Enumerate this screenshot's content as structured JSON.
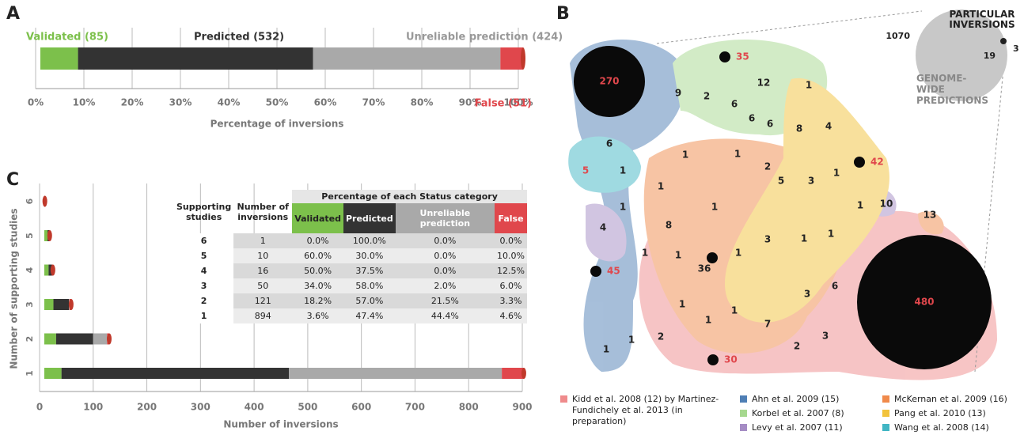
{
  "chart_data": [
    {
      "type": "stacked-bar",
      "panel": "A",
      "orientation": "horizontal",
      "xlabel": "Percentage of inversions",
      "categories": [
        null
      ],
      "series": [
        {
          "name": "Validated (85)",
          "color": "#7cc04b",
          "values": [
            7.8
          ]
        },
        {
          "name": "Predicted (532)",
          "color": "#333333",
          "values": [
            48.7
          ]
        },
        {
          "name": "Unreliable prediction (424)",
          "color": "#a9a9a9",
          "values": [
            38.8
          ]
        },
        {
          "name": "False (51)",
          "color": "#e0474c",
          "values": [
            4.7
          ]
        }
      ],
      "xlim": [
        0,
        100
      ],
      "xticks": [
        {
          "value": 0,
          "label": "0%"
        },
        {
          "value": 10,
          "label": "10%"
        },
        {
          "value": 20,
          "label": "20%"
        },
        {
          "value": 30,
          "label": "30%"
        },
        {
          "value": 40,
          "label": "40%"
        },
        {
          "value": 50,
          "label": "50%"
        },
        {
          "value": 60,
          "label": "60%"
        },
        {
          "value": 70,
          "label": "70%"
        },
        {
          "value": 80,
          "label": "80%"
        },
        {
          "value": 90,
          "label": "90%"
        },
        {
          "value": 100,
          "label": "100%"
        }
      ],
      "grid": true
    },
    {
      "type": "stacked-bar",
      "panel": "C",
      "orientation": "horizontal",
      "xlabel": "Number of inversions",
      "ylabel": "Number of supporting studies",
      "categories": [
        "1",
        "2",
        "3",
        "4",
        "5",
        "6"
      ],
      "series": [
        {
          "color": "#7cc04b",
          "values": [
            32,
            22,
            17,
            8,
            6,
            0
          ]
        },
        {
          "color": "#333333",
          "values": [
            424,
            69,
            29,
            6,
            3,
            1
          ]
        },
        {
          "color": "#a9a9a9",
          "values": [
            397,
            26,
            1,
            0,
            0,
            0
          ]
        },
        {
          "color": "#e0474c",
          "values": [
            41,
            4,
            3,
            2,
            1,
            0
          ]
        }
      ],
      "xlim": [
        0,
        900
      ],
      "xticks": [
        0,
        100,
        200,
        300,
        400,
        500,
        600,
        700,
        800,
        900
      ],
      "grid": true
    }
  ],
  "table": {
    "header": {
      "studies": "Supporting studies",
      "number": "Number of inversions",
      "group": "Percentage of each Status category",
      "columns": [
        {
          "text": "Validated",
          "color": "#7cc04b"
        },
        {
          "text": "Predicted",
          "color": "#333333"
        },
        {
          "text": "Unreliable prediction",
          "color": "#a9a9a9"
        },
        {
          "text": "False",
          "color": "#e0474c"
        }
      ]
    },
    "rows": [
      [
        "6",
        "1",
        "0.0%",
        "100.0%",
        "0.0%",
        "0.0%"
      ],
      [
        "5",
        "10",
        "60.0%",
        "30.0%",
        "0.0%",
        "10.0%"
      ],
      [
        "4",
        "16",
        "50.0%",
        "37.5%",
        "0.0%",
        "12.5%"
      ],
      [
        "3",
        "50",
        "34.0%",
        "58.0%",
        "2.0%",
        "6.0%"
      ],
      [
        "2",
        "121",
        "18.2%",
        "57.0%",
        "21.5%",
        "3.3%"
      ],
      [
        "1",
        "894",
        "3.6%",
        "47.4%",
        "44.4%",
        "4.6%"
      ]
    ]
  },
  "venn": {
    "panel": "B",
    "labels": [
      "270",
      "35",
      "9",
      "2",
      "6",
      "12",
      "1",
      "6",
      "6",
      "8",
      "4",
      "6",
      "1",
      "1",
      "2",
      "42",
      "5",
      "1",
      "1",
      "5",
      "3",
      "1",
      "1",
      "1",
      "1",
      "10",
      "13",
      "4",
      "8",
      "3",
      "1",
      "1",
      "1",
      "1",
      "45",
      "36",
      "1",
      "3",
      "6",
      "480",
      "1",
      "1",
      "1",
      "7",
      "3",
      "2",
      "1",
      "1",
      "2",
      "30"
    ],
    "inset": {
      "title": "PARTICULAR INVERSIONS",
      "subtitle": "GENOME-WIDE PREDICTIONS",
      "counts": [
        "1070",
        "19",
        "3"
      ]
    },
    "legend": [
      {
        "text": "Kidd et al. 2008 (12) by Martinez-Fundichely et al. 2013 (in preparation)",
        "color": "#ef8b8c"
      },
      {
        "text": "Ahn et al. 2009 (15)",
        "color": "#4f7fb5"
      },
      {
        "text": "Korbel et al. 2007 (8)",
        "color": "#a6d88f"
      },
      {
        "text": "Levy et al. 2007 (11)",
        "color": "#a58cc4"
      },
      {
        "text": "McKernan et al. 2009 (16)",
        "color": "#f08a4b"
      },
      {
        "text": "Pang et al. 2010 (13)",
        "color": "#f2c33c"
      },
      {
        "text": "Wang et al. 2008 (14)",
        "color": "#41b6c4"
      }
    ]
  }
}
